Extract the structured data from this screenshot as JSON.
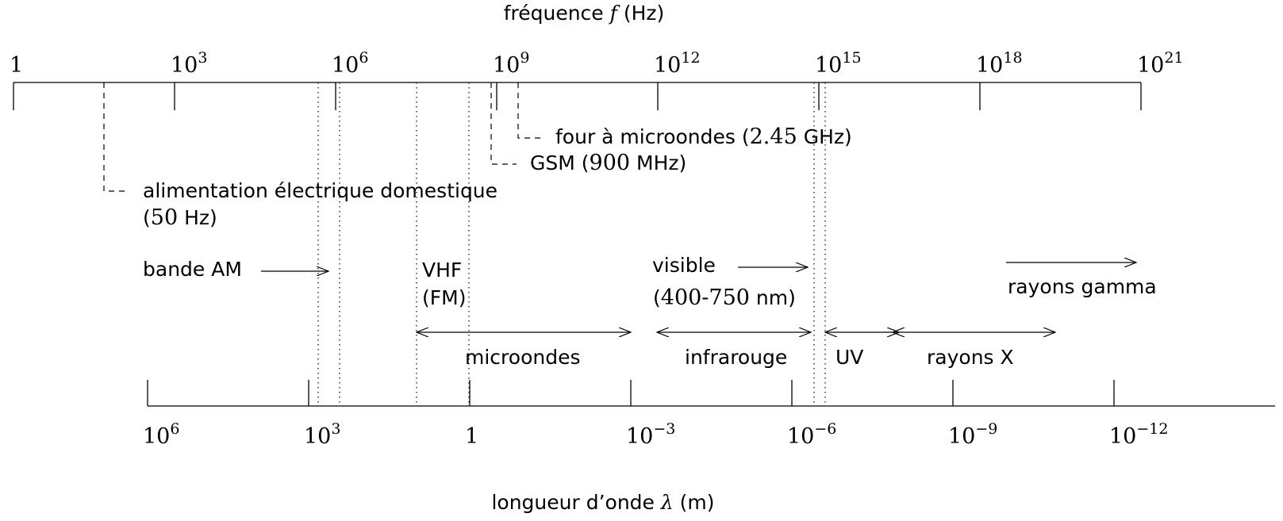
{
  "title_top": "fréquence f (Hz)",
  "title_top_parts": {
    "pre": "fréquence ",
    "var": "f",
    "post": " (Hz)"
  },
  "title_bottom": "longueur d'onde λ (m)",
  "title_bottom_parts": {
    "pre": "longueur d’onde ",
    "var": "λ",
    "post": " (m)"
  },
  "freq_ticks": [
    {
      "base": "1",
      "exp": ""
    },
    {
      "base": "10",
      "exp": "3"
    },
    {
      "base": "10",
      "exp": "6"
    },
    {
      "base": "10",
      "exp": "9"
    },
    {
      "base": "10",
      "exp": "12"
    },
    {
      "base": "10",
      "exp": "15"
    },
    {
      "base": "10",
      "exp": "18"
    },
    {
      "base": "10",
      "exp": "21"
    }
  ],
  "wave_ticks": [
    {
      "base": "10",
      "exp": "6"
    },
    {
      "base": "10",
      "exp": "3"
    },
    {
      "base": "1",
      "exp": ""
    },
    {
      "base": "10",
      "exp": "−3"
    },
    {
      "base": "10",
      "exp": "−6"
    },
    {
      "base": "10",
      "exp": "−9"
    },
    {
      "base": "10",
      "exp": "−12"
    }
  ],
  "markers": {
    "four": {
      "text": "four à microondes (",
      "value": "2.45",
      "unit": " GHz)"
    },
    "gsm": {
      "text": "GSM (",
      "value": "900",
      "unit": " MHz)"
    },
    "domestic": {
      "line1": "alimentation électrique domestique",
      "line2_pre": "(",
      "value": "50",
      "line2_post": " Hz)"
    }
  },
  "bands": {
    "am": "bande AM",
    "vhf_line1": "VHF",
    "vhf_line2": "(FM)",
    "visible_line1": "visible",
    "visible_line2_pre": "(",
    "visible_value": "400-750",
    "visible_line2_post": " nm)",
    "gamma": "rayons gamma",
    "microondes": "microondes",
    "infrarouge": "infrarouge",
    "uv": "UV",
    "rayons_x": "rayons X"
  }
}
